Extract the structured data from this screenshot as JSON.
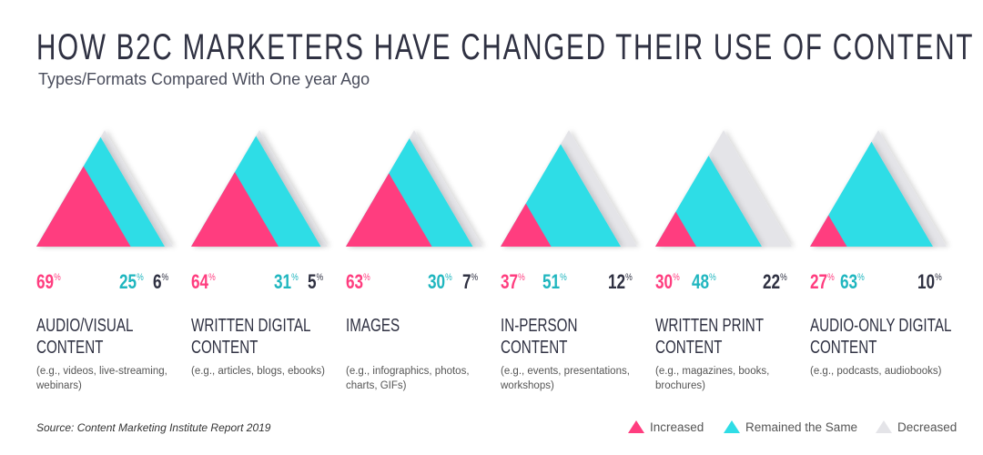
{
  "title": "HOW B2C MARKETERS HAVE CHANGED THEIR USE OF CONTENT",
  "subtitle": "Types/Formats Compared With One year Ago",
  "source": "Source: Content Marketing Institute Report 2019",
  "colors": {
    "increased": "#ff3d7f",
    "same": "#2fdde6",
    "decreased": "#e4e4e8",
    "same_text": "#1fb6bf",
    "decreased_text": "#2f3142"
  },
  "chart_data": {
    "type": "stacked-triangle",
    "unit": "%",
    "legend": [
      {
        "key": "increased",
        "label": "Increased"
      },
      {
        "key": "same",
        "label": "Remained the Same"
      },
      {
        "key": "decreased",
        "label": "Decreased"
      }
    ],
    "legend_position": "bottom-right",
    "categories": [
      {
        "name": "AUDIO/VISUAL CONTENT",
        "examples": "(e.g., videos, live-streaming, webinars)",
        "increased": 69,
        "same": 25,
        "decreased": 6
      },
      {
        "name": "WRITTEN DIGITAL CONTENT",
        "examples": "(e.g., articles, blogs, ebooks)",
        "increased": 64,
        "same": 31,
        "decreased": 5
      },
      {
        "name": "IMAGES",
        "examples": "(e.g., infographics, photos, charts, GIFs)",
        "increased": 63,
        "same": 30,
        "decreased": 7
      },
      {
        "name": "IN-PERSON CONTENT",
        "examples": "(e.g., events, presentations, workshops)",
        "increased": 37,
        "same": 51,
        "decreased": 12
      },
      {
        "name": "WRITTEN PRINT CONTENT",
        "examples": "(e.g., magazines, books, brochures)",
        "increased": 30,
        "same": 48,
        "decreased": 22
      },
      {
        "name": "AUDIO-ONLY DIGITAL CONTENT",
        "examples": "(e.g., podcasts, audiobooks)",
        "increased": 27,
        "same": 63,
        "decreased": 10
      }
    ]
  }
}
